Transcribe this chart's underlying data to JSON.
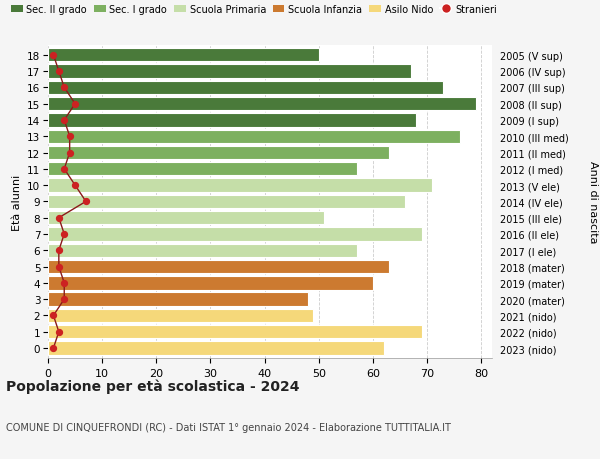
{
  "ages": [
    18,
    17,
    16,
    15,
    14,
    13,
    12,
    11,
    10,
    9,
    8,
    7,
    6,
    5,
    4,
    3,
    2,
    1,
    0
  ],
  "labels_right": [
    "2005 (V sup)",
    "2006 (IV sup)",
    "2007 (III sup)",
    "2008 (II sup)",
    "2009 (I sup)",
    "2010 (III med)",
    "2011 (II med)",
    "2012 (I med)",
    "2013 (V ele)",
    "2014 (IV ele)",
    "2015 (III ele)",
    "2016 (II ele)",
    "2017 (I ele)",
    "2018 (mater)",
    "2019 (mater)",
    "2020 (mater)",
    "2021 (nido)",
    "2022 (nido)",
    "2023 (nido)"
  ],
  "bar_values": [
    50,
    67,
    73,
    79,
    68,
    76,
    63,
    57,
    71,
    66,
    51,
    69,
    57,
    63,
    60,
    48,
    49,
    69,
    62
  ],
  "stranieri_values": [
    1,
    2,
    3,
    5,
    3,
    4,
    4,
    3,
    5,
    7,
    2,
    3,
    2,
    2,
    3,
    3,
    1,
    2,
    1
  ],
  "bar_colors": [
    "#4a7a3a",
    "#4a7a3a",
    "#4a7a3a",
    "#4a7a3a",
    "#4a7a3a",
    "#7db060",
    "#7db060",
    "#7db060",
    "#c5dea8",
    "#c5dea8",
    "#c5dea8",
    "#c5dea8",
    "#c5dea8",
    "#cc7a30",
    "#cc7a30",
    "#cc7a30",
    "#f5d87a",
    "#f5d87a",
    "#f5d87a"
  ],
  "legend_colors": [
    "#4a7a3a",
    "#7db060",
    "#c5dea8",
    "#cc7a30",
    "#f5d87a",
    "#cc2222"
  ],
  "legend_labels": [
    "Sec. II grado",
    "Sec. I grado",
    "Scuola Primaria",
    "Scuola Infanzia",
    "Asilo Nido",
    "Stranieri"
  ],
  "ylabel_left": "Età alunni",
  "ylabel_right": "Anni di nascita",
  "title": "Popolazione per età scolastica - 2024",
  "subtitle": "COMUNE DI CINQUEFRONDI (RC) - Dati ISTAT 1° gennaio 2024 - Elaborazione TUTTITALIA.IT",
  "xlim": [
    0,
    82
  ],
  "xticks": [
    0,
    10,
    20,
    30,
    40,
    50,
    60,
    70,
    80
  ],
  "background_color": "#f5f5f5",
  "plot_bg_color": "#ffffff",
  "grid_color": "#cccccc",
  "stranieri_line_color": "#8b1a1a",
  "stranieri_dot_color": "#cc2222"
}
